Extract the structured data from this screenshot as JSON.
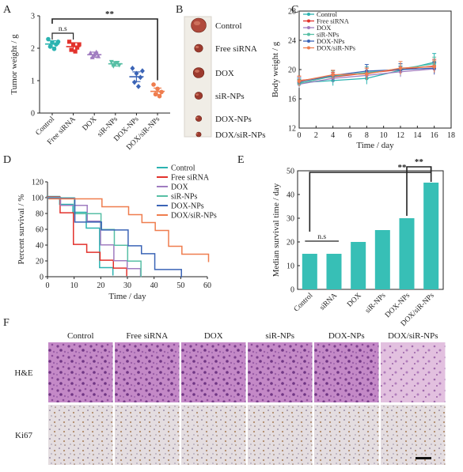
{
  "groups": [
    "Control",
    "Free siRNA",
    "DOX",
    "siR-NPs",
    "DOX-NPs",
    "DOX/siR-NPs"
  ],
  "colors": {
    "Control": "#2bb3b1",
    "Free siRNA": "#e2322c",
    "DOX": "#a07cc0",
    "siR-NPs": "#57bfa5",
    "DOX-NPs": "#3b64b6",
    "DOX/siR-NPs": "#ef7d4e",
    "bar": "#37bfb6"
  },
  "panels": {
    "A": {
      "label": "A"
    },
    "B": {
      "label": "B"
    },
    "C": {
      "label": "C"
    },
    "D": {
      "label": "D"
    },
    "E": {
      "label": "E"
    },
    "F": {
      "label": "F"
    }
  },
  "tissue": {
    "rows": [
      "H&E",
      "Ki67"
    ],
    "columns": [
      "Control",
      "Free siRNA",
      "DOX",
      "siR-NPs",
      "DOX-NPs",
      "DOX/siR-NPs"
    ]
  },
  "chart_data": [
    {
      "id": "A",
      "type": "scatter",
      "ylabel": "Tumor weight / g",
      "ylim": [
        0,
        3
      ],
      "yticks": [
        0,
        1,
        2,
        3
      ],
      "categories": [
        "Control",
        "Free siRNA",
        "DOX",
        "siR-NPs",
        "DOX-NPs",
        "DOX/siR-NPs"
      ],
      "points": [
        [
          2.28,
          2.18,
          2.12,
          2.05,
          1.98,
          2.2
        ],
        [
          2.2,
          2.1,
          2.02,
          1.95,
          1.9,
          2.12
        ],
        [
          1.85,
          1.8,
          1.75,
          1.72,
          1.88
        ],
        [
          1.58,
          1.52,
          1.48,
          1.45,
          1.55
        ],
        [
          1.38,
          1.22,
          1.1,
          0.95,
          0.82,
          1.3
        ],
        [
          0.88,
          0.75,
          0.65,
          0.58,
          0.52
        ]
      ],
      "means": [
        2.13,
        2.05,
        1.8,
        1.52,
        1.12,
        0.67
      ],
      "errors": [
        0.1,
        0.12,
        0.08,
        0.07,
        0.15,
        0.1
      ],
      "annotations": [
        {
          "from": 0,
          "to": 1,
          "text": "n.s"
        },
        {
          "from": 0,
          "to": 5,
          "text": "**"
        }
      ]
    },
    {
      "id": "C",
      "type": "line",
      "xlabel": "Time / day",
      "ylabel": "Body weight / g",
      "xlim": [
        0,
        18
      ],
      "xticks": [
        0,
        2,
        4,
        6,
        8,
        10,
        12,
        14,
        16,
        18
      ],
      "ylim": [
        12,
        28
      ],
      "yticks": [
        12,
        16,
        20,
        24,
        28
      ],
      "x": [
        0,
        4,
        8,
        12,
        16
      ],
      "legend_position": "top-left",
      "series": [
        {
          "name": "Control",
          "values": [
            18.2,
            18.5,
            18.8,
            19.9,
            21.0
          ],
          "errors": [
            0.5,
            0.7,
            0.8,
            0.6,
            1.2
          ]
        },
        {
          "name": "Free siRNA",
          "values": [
            18.5,
            19.0,
            19.5,
            20.0,
            20.5
          ],
          "errors": [
            0.6,
            0.6,
            0.7,
            0.8,
            0.9
          ]
        },
        {
          "name": "DOX",
          "values": [
            18.0,
            18.8,
            19.2,
            19.7,
            20.1
          ],
          "errors": [
            0.5,
            0.6,
            0.6,
            0.7,
            0.8
          ]
        },
        {
          "name": "siR-NPs",
          "values": [
            18.1,
            19.1,
            19.6,
            20.1,
            20.8
          ],
          "errors": [
            0.5,
            0.7,
            0.8,
            0.7,
            0.9
          ]
        },
        {
          "name": "DOX-NPs",
          "values": [
            18.3,
            19.2,
            19.8,
            20.0,
            20.2
          ],
          "errors": [
            0.6,
            0.7,
            0.9,
            0.8,
            0.8
          ]
        },
        {
          "name": "DOX/siR-NPs",
          "values": [
            18.4,
            19.3,
            19.4,
            20.2,
            20.4
          ],
          "errors": [
            0.7,
            0.6,
            0.8,
            0.9,
            0.8
          ]
        }
      ]
    },
    {
      "id": "D",
      "type": "line",
      "step": true,
      "xlabel": "Time / day",
      "ylabel": "Percent survival / %",
      "xlim": [
        0,
        60
      ],
      "xticks": [
        0,
        10,
        20,
        30,
        40,
        50,
        60
      ],
      "ylim": [
        0,
        120
      ],
      "yticks": [
        0,
        20,
        40,
        60,
        80,
        100,
        120
      ],
      "legend_position": "top-right",
      "series": [
        {
          "name": "Control",
          "points": [
            [
              0,
              100
            ],
            [
              5,
              100
            ],
            [
              5,
              90
            ],
            [
              10,
              90
            ],
            [
              10,
              80
            ],
            [
              15,
              80
            ],
            [
              15,
              60
            ],
            [
              20,
              60
            ],
            [
              20,
              10
            ],
            [
              25,
              10
            ],
            [
              25,
              0
            ],
            [
              25,
              0
            ]
          ]
        },
        {
          "name": "Free siRNA",
          "points": [
            [
              0,
              100
            ],
            [
              5,
              100
            ],
            [
              5,
              80
            ],
            [
              10,
              80
            ],
            [
              10,
              40
            ],
            [
              15,
              40
            ],
            [
              15,
              30
            ],
            [
              20,
              30
            ],
            [
              20,
              20
            ],
            [
              25,
              20
            ],
            [
              25,
              10
            ],
            [
              30,
              10
            ],
            [
              30,
              0
            ]
          ]
        },
        {
          "name": "DOX",
          "points": [
            [
              0,
              100
            ],
            [
              5,
              100
            ],
            [
              5,
              90
            ],
            [
              15,
              90
            ],
            [
              15,
              70
            ],
            [
              20,
              70
            ],
            [
              20,
              40
            ],
            [
              25,
              40
            ],
            [
              25,
              20
            ],
            [
              30,
              20
            ],
            [
              30,
              10
            ],
            [
              35,
              10
            ],
            [
              35,
              0
            ]
          ]
        },
        {
          "name": "siR-NPs",
          "points": [
            [
              0,
              100
            ],
            [
              10,
              100
            ],
            [
              10,
              80
            ],
            [
              20,
              80
            ],
            [
              20,
              60
            ],
            [
              25,
              60
            ],
            [
              25,
              40
            ],
            [
              30,
              40
            ],
            [
              30,
              20
            ],
            [
              35,
              20
            ],
            [
              35,
              0
            ]
          ]
        },
        {
          "name": "DOX-NPs",
          "points": [
            [
              0,
              100
            ],
            [
              10,
              100
            ],
            [
              10,
              70
            ],
            [
              20,
              70
            ],
            [
              20,
              60
            ],
            [
              30,
              60
            ],
            [
              30,
              40
            ],
            [
              35,
              40
            ],
            [
              35,
              30
            ],
            [
              40,
              30
            ],
            [
              40,
              10
            ],
            [
              50,
              10
            ],
            [
              50,
              0
            ]
          ]
        },
        {
          "name": "DOX/siR-NPs",
          "points": [
            [
              0,
              100
            ],
            [
              20,
              100
            ],
            [
              20,
              90
            ],
            [
              30,
              90
            ],
            [
              30,
              80
            ],
            [
              35,
              80
            ],
            [
              35,
              70
            ],
            [
              40,
              70
            ],
            [
              40,
              60
            ],
            [
              45,
              60
            ],
            [
              45,
              40
            ],
            [
              50,
              40
            ],
            [
              50,
              30
            ],
            [
              60,
              30
            ],
            [
              60,
              20
            ]
          ]
        }
      ]
    },
    {
      "id": "E",
      "type": "bar",
      "ylabel": "Median survival time / day",
      "ylim": [
        0,
        50
      ],
      "yticks": [
        0,
        10,
        20,
        30,
        40,
        50
      ],
      "categories": [
        "Control",
        "siRNA",
        "DOX",
        "siR-NPs",
        "DOX-NPs",
        "DOX/siR-NPs"
      ],
      "values": [
        15,
        15,
        20,
        25,
        30,
        45
      ],
      "annotations": [
        {
          "from": 0,
          "to": 1,
          "text": "n.s"
        },
        {
          "from": 4,
          "to": 5,
          "text": "**"
        },
        {
          "from": 0,
          "to": 5,
          "text": "**"
        }
      ]
    }
  ]
}
